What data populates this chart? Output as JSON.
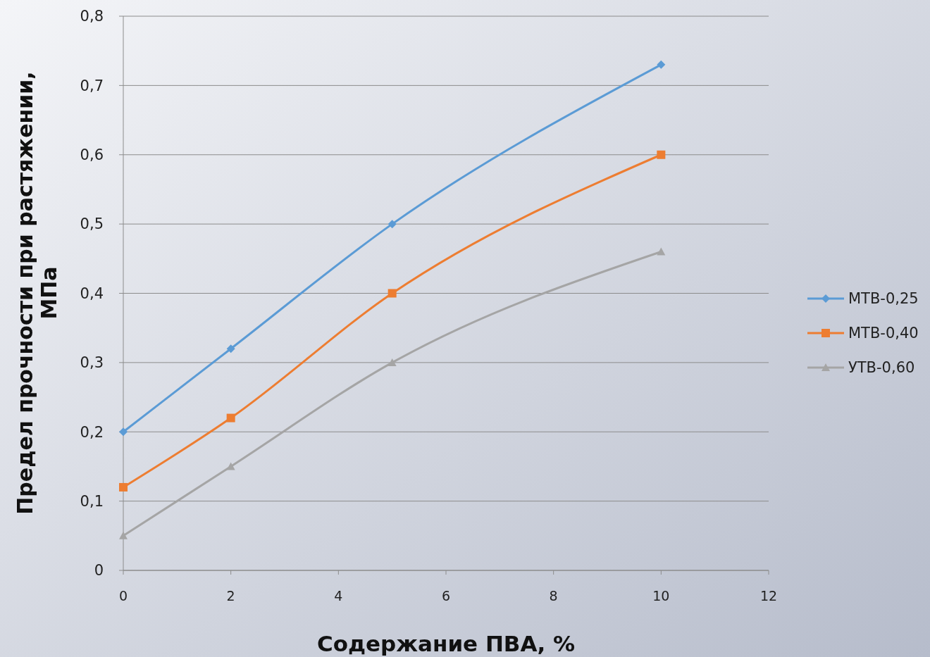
{
  "chart_data": {
    "type": "line",
    "xlabel": "Содержание ПВА, %",
    "ylabel": "Предел прочности при растяжении, МПа",
    "x": [
      0,
      2,
      5,
      10
    ],
    "series": [
      {
        "name": "МТВ-0,25",
        "color": "#5b9bd5",
        "marker": "diamond",
        "values": [
          0.2,
          0.32,
          0.5,
          0.73
        ]
      },
      {
        "name": "МТВ-0,40",
        "color": "#ed7d31",
        "marker": "square",
        "values": [
          0.12,
          0.22,
          0.4,
          0.6
        ]
      },
      {
        "name": "УТВ-0,60",
        "color": "#a5a5a5",
        "marker": "triangle",
        "values": [
          0.05,
          0.15,
          0.3,
          0.46
        ]
      }
    ],
    "xlim": [
      0,
      12
    ],
    "xticks": [
      0,
      2,
      4,
      6,
      8,
      10,
      12
    ],
    "ylim": [
      0,
      0.8
    ],
    "yticks": [
      0,
      {
        "value": 0.1,
        "label": "0,1"
      },
      {
        "value": 0.2,
        "label": "0,2"
      },
      {
        "value": 0.3,
        "label": "0,3"
      },
      {
        "value": 0.4,
        "label": "0,4"
      },
      {
        "value": 0.5,
        "label": "0,5"
      },
      {
        "value": 0.6,
        "label": "0,6"
      },
      {
        "value": 0.7,
        "label": "0,7"
      },
      {
        "value": 0.8,
        "label": "0,8"
      }
    ],
    "grid": "y",
    "legend": "right",
    "line_style": "solid"
  }
}
